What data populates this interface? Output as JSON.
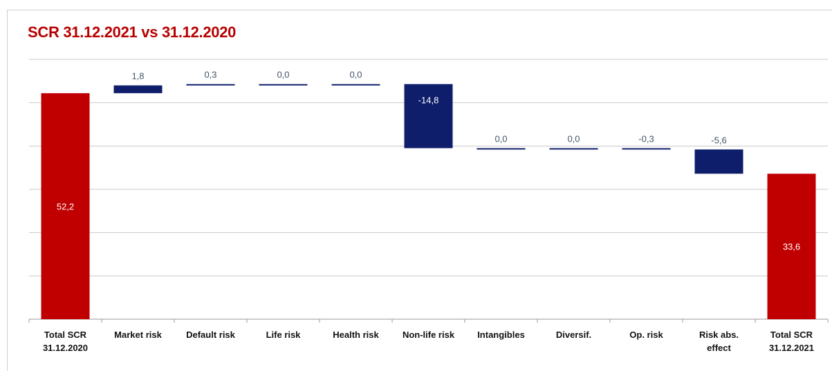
{
  "chart_data": {
    "type": "bar",
    "subtype": "waterfall",
    "title": "SCR 31.12.2021 vs 31.12.2020",
    "xlabel": "",
    "ylabel": "",
    "grid": true,
    "ylim": [
      0,
      60
    ],
    "categories": [
      [
        "Total SCR",
        "31.12.2020"
      ],
      [
        "Market risk"
      ],
      [
        "Default risk"
      ],
      [
        "Life risk"
      ],
      [
        "Health risk"
      ],
      [
        "Non-life risk"
      ],
      [
        "Intangibles"
      ],
      [
        "Diversif."
      ],
      [
        "Op. risk"
      ],
      [
        "Risk abs.",
        "effect"
      ],
      [
        "Total SCR",
        "31.12.2021"
      ]
    ],
    "values": [
      52.2,
      1.8,
      0.3,
      0.0,
      0.0,
      -14.8,
      0.0,
      0.0,
      -0.3,
      -5.6,
      33.6
    ],
    "kinds": [
      "total",
      "delta",
      "delta",
      "delta",
      "delta",
      "delta",
      "delta",
      "delta",
      "delta",
      "delta",
      "total"
    ],
    "value_labels": [
      "52,2",
      "1,8",
      "0,3",
      "0,0",
      "0,0",
      "-14,8",
      "0,0",
      "0,0",
      "-0,3",
      "-5,6",
      "33,6"
    ],
    "colors": {
      "total": "#c00000",
      "delta": "#0f1e6b",
      "grid": "#c8c8c8",
      "axis": "#9a9a9a",
      "value_label": "#44546a",
      "label_on_bar": "#ffffff"
    }
  }
}
